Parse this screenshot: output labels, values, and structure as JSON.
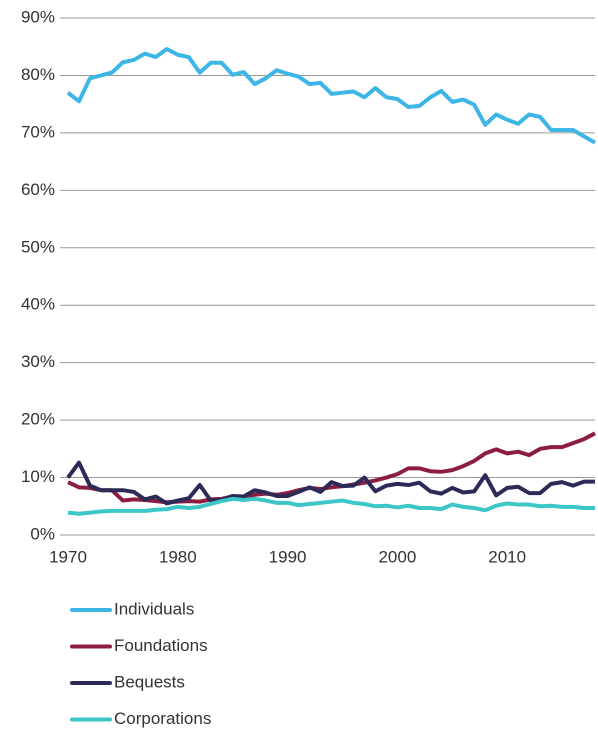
{
  "chart_data": {
    "type": "line",
    "x": [
      1970,
      1971,
      1972,
      1973,
      1974,
      1975,
      1976,
      1977,
      1978,
      1979,
      1980,
      1981,
      1982,
      1983,
      1984,
      1985,
      1986,
      1987,
      1988,
      1989,
      1990,
      1991,
      1992,
      1993,
      1994,
      1995,
      1996,
      1997,
      1998,
      1999,
      2000,
      2001,
      2002,
      2003,
      2004,
      2005,
      2006,
      2007,
      2008,
      2009,
      2010,
      2011,
      2012,
      2013,
      2014,
      2015,
      2016,
      2017,
      2018
    ],
    "series": [
      {
        "name": "Individuals",
        "color": "#3db5e6",
        "values": [
          77,
          75.5,
          79.5,
          80,
          80.5,
          82.3,
          82.7,
          83.8,
          83.2,
          84.6,
          83.6,
          83.2,
          80.5,
          82.2,
          82.2,
          80.1,
          80.6,
          78.5,
          79.5,
          80.9,
          80.3,
          79.8,
          78.5,
          78.7,
          76.8,
          77,
          77.2,
          76.2,
          77.8,
          76.2,
          75.9,
          74.5,
          74.7,
          76.2,
          77.3,
          75.4,
          75.8,
          74.9,
          71.4,
          73.2,
          72.3,
          71.6,
          73.2,
          72.8,
          70.5,
          70.5,
          70.5,
          69.4,
          68.3
        ]
      },
      {
        "name": "Foundations",
        "color": "#8c1d40",
        "values": [
          9.2,
          8.3,
          8.2,
          7.8,
          7.8,
          6,
          6.2,
          6.1,
          5.9,
          5.7,
          5.8,
          5.9,
          5.8,
          6.2,
          6.3,
          6.7,
          6.6,
          7,
          7.2,
          7,
          7.3,
          7.8,
          8.2,
          8,
          8.3,
          8.5,
          8.8,
          9.1,
          9.5,
          10,
          10.6,
          11.6,
          11.6,
          11.1,
          11,
          11.3,
          12,
          12.9,
          14.2,
          14.9,
          14.2,
          14.5,
          13.9,
          15,
          15.3,
          15.3,
          16,
          16.7,
          17.7
        ]
      },
      {
        "name": "Bequests",
        "color": "#2c2b57",
        "values": [
          10,
          12.6,
          8.6,
          7.8,
          7.8,
          7.8,
          7.5,
          6.2,
          6.7,
          5.5,
          6,
          6.4,
          8.7,
          6,
          6.1,
          6.8,
          6.7,
          7.8,
          7.4,
          6.8,
          6.8,
          7.5,
          8.3,
          7.5,
          9.2,
          8.5,
          8.6,
          10,
          7.6,
          8.6,
          8.9,
          8.7,
          9.1,
          7.6,
          7.2,
          8.2,
          7.4,
          7.6,
          10.4,
          6.9,
          8.2,
          8.4,
          7.3,
          7.3,
          8.9,
          9.2,
          8.6,
          9.3,
          9.3
        ]
      },
      {
        "name": "Corporations",
        "color": "#3cc6c8",
        "values": [
          3.9,
          3.7,
          3.9,
          4.1,
          4.2,
          4.2,
          4.2,
          4.2,
          4.4,
          4.5,
          4.9,
          4.7,
          4.9,
          5.4,
          5.9,
          6.3,
          6.1,
          6.3,
          6,
          5.6,
          5.6,
          5.2,
          5.4,
          5.6,
          5.8,
          6,
          5.6,
          5.4,
          5,
          5.1,
          4.8,
          5.1,
          4.7,
          4.7,
          4.5,
          5.3,
          4.9,
          4.7,
          4.3,
          5.1,
          5.5,
          5.3,
          5.3,
          5,
          5.1,
          4.9,
          4.9,
          4.7,
          4.7
        ]
      }
    ],
    "xlim": [
      1970,
      2018
    ],
    "xticks": [
      1970,
      1980,
      1990,
      2000,
      2010
    ],
    "ylim": [
      0,
      90
    ],
    "yticks": [
      {
        "value": 0,
        "label": "0%"
      },
      {
        "value": 10,
        "label": "10%"
      },
      {
        "value": 20,
        "label": "20%"
      },
      {
        "value": 30,
        "label": "30%"
      },
      {
        "value": 40,
        "label": "40%"
      },
      {
        "value": 50,
        "label": "50%"
      },
      {
        "value": 60,
        "label": "60%"
      },
      {
        "value": 70,
        "label": "70%"
      },
      {
        "value": 80,
        "label": "80%"
      },
      {
        "value": 90,
        "label": "90%"
      }
    ],
    "grid": true,
    "legend": "bottom"
  }
}
